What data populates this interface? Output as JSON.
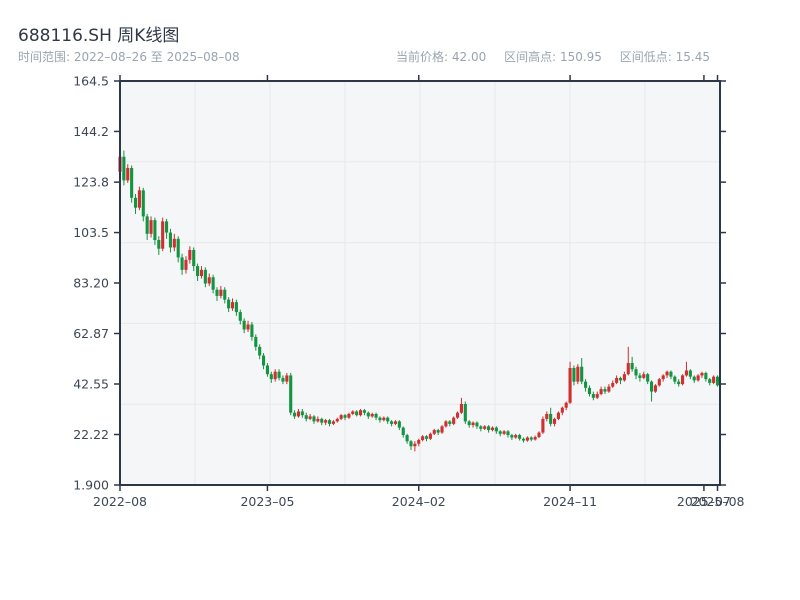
{
  "header": {
    "title": "688116.SH 周K线图",
    "range_label": "时间范围:",
    "range_value": "2022–08–26 至 2025–08–08",
    "stats": [
      {
        "label": "当前价格:",
        "value": "42.00"
      },
      {
        "label": "区间高点:",
        "value": "150.95"
      },
      {
        "label": "区间低点:",
        "value": "15.45"
      }
    ]
  },
  "chart_data": {
    "type": "candlestick",
    "symbol": "688116.SH",
    "period": "weekly",
    "title": "688116.SH 周K线图",
    "date_start": "2022-08-26",
    "date_end": "2025-08-08",
    "current_price": 42.0,
    "range_high": 150.95,
    "range_low": 15.45,
    "ylim": [
      1.9,
      164.5
    ],
    "grid": true,
    "colors": {
      "up": "#d02f2f",
      "down": "#129440",
      "frame": "#2c3848",
      "gridline": "#e6e8eb",
      "plot_bg": "#f5f6f8",
      "tick_text": "#3d4855"
    },
    "y_ticks": [
      {
        "label": "164.5",
        "value": 164.5
      },
      {
        "label": "144.2",
        "value": 144.2
      },
      {
        "label": "123.8",
        "value": 123.8
      },
      {
        "label": "103.5",
        "value": 103.5
      },
      {
        "label": "83.20",
        "value": 83.2
      },
      {
        "label": "62.87",
        "value": 62.87
      },
      {
        "label": "42.55",
        "value": 42.55
      },
      {
        "label": "22.22",
        "value": 22.22
      },
      {
        "label": "1.900",
        "value": 1.9
      }
    ],
    "x_ticks": [
      {
        "label": "2022–08",
        "week": 0
      },
      {
        "label": "2023–05",
        "week": 38
      },
      {
        "label": "2024–02",
        "week": 77
      },
      {
        "label": "2024–11",
        "week": 116
      },
      {
        "label": "2025–07",
        "week": 150.5
      },
      {
        "label": "2025–08",
        "week": 154
      }
    ],
    "candles": [
      [
        128,
        150.95,
        125,
        134
      ],
      [
        134,
        136.5,
        122.5,
        124.5
      ],
      [
        124.5,
        131,
        123.5,
        129.5
      ],
      [
        129.5,
        130.5,
        115.5,
        117.5
      ],
      [
        117.5,
        119,
        111,
        113.5
      ],
      [
        113.5,
        122,
        112.5,
        120.5
      ],
      [
        120.5,
        121.5,
        108,
        110
      ],
      [
        110,
        111,
        100.5,
        103
      ],
      [
        103,
        110,
        101.5,
        108.5
      ],
      [
        108.5,
        109.5,
        98.5,
        100.5
      ],
      [
        100.5,
        102,
        94.5,
        97
      ],
      [
        97,
        109.5,
        96,
        108
      ],
      [
        108,
        109,
        101,
        103.5
      ],
      [
        103.5,
        105,
        95.5,
        97.5
      ],
      [
        97.5,
        103,
        96,
        101
      ],
      [
        101,
        102,
        91.5,
        93.5
      ],
      [
        93.5,
        95,
        86.5,
        88.5
      ],
      [
        88.5,
        94,
        87,
        92.5
      ],
      [
        92.5,
        98,
        91,
        96.5
      ],
      [
        96.5,
        97.5,
        88,
        90
      ],
      [
        90,
        91,
        84,
        86
      ],
      [
        86,
        90,
        85,
        88.5
      ],
      [
        88.5,
        89.5,
        81.5,
        83
      ],
      [
        83,
        87,
        82,
        85.5
      ],
      [
        85.5,
        86.5,
        79,
        80.5
      ],
      [
        80.5,
        81.5,
        76,
        78
      ],
      [
        78,
        82,
        77,
        80.5
      ],
      [
        80.5,
        81.5,
        75,
        76.5
      ],
      [
        76.5,
        77.5,
        71.5,
        73
      ],
      [
        73,
        77,
        72,
        75.5
      ],
      [
        75.5,
        76.5,
        70,
        71.5
      ],
      [
        71.5,
        72.5,
        66.5,
        68
      ],
      [
        68,
        69,
        63,
        64.5
      ],
      [
        64.5,
        68,
        63.5,
        66.5
      ],
      [
        66.5,
        67.5,
        60,
        61.5
      ],
      [
        61.5,
        62.5,
        56,
        57.5
      ],
      [
        57.5,
        58.5,
        52.5,
        54
      ],
      [
        54,
        55,
        48.5,
        50
      ],
      [
        50,
        51,
        45.5,
        46.5
      ],
      [
        46.5,
        47.5,
        43,
        44.5
      ],
      [
        44.5,
        48.5,
        43.5,
        47.5
      ],
      [
        47.5,
        48.5,
        44,
        45
      ],
      [
        45,
        46,
        42.5,
        43.5
      ],
      [
        43.5,
        47,
        42.5,
        46
      ],
      [
        46,
        47,
        30,
        31
      ],
      [
        31,
        32,
        28.5,
        29.5
      ],
      [
        29.5,
        32.5,
        29,
        31.5
      ],
      [
        31.5,
        32.5,
        29,
        30
      ],
      [
        30,
        31,
        27.5,
        28.5
      ],
      [
        28.5,
        30.5,
        28,
        29.5
      ],
      [
        29.5,
        30,
        26.5,
        27.5
      ],
      [
        27.5,
        29.5,
        27,
        28.5
      ],
      [
        28.5,
        29,
        26,
        27
      ],
      [
        27,
        28.5,
        26,
        28
      ],
      [
        28,
        28.5,
        25.5,
        26.5
      ],
      [
        26.5,
        28,
        26,
        27.5
      ],
      [
        27.5,
        29,
        27,
        28.5
      ],
      [
        28.5,
        30.5,
        28,
        30
      ],
      [
        30,
        30.5,
        28,
        29
      ],
      [
        29,
        31,
        28.5,
        30.5
      ],
      [
        30.5,
        32,
        30,
        31.5
      ],
      [
        31.5,
        32,
        29.5,
        30
      ],
      [
        30,
        32.5,
        29.5,
        32
      ],
      [
        32,
        32.5,
        30,
        31
      ],
      [
        31,
        31.5,
        28.5,
        29.5
      ],
      [
        29.5,
        31,
        29,
        30.5
      ],
      [
        30.5,
        31,
        28,
        29
      ],
      [
        29,
        29.5,
        27,
        28
      ],
      [
        28,
        29.5,
        27.5,
        29
      ],
      [
        29,
        29.5,
        26.5,
        27.5
      ],
      [
        27.5,
        28,
        25.5,
        26.5
      ],
      [
        26.5,
        28,
        26,
        27.5
      ],
      [
        27.5,
        28,
        24,
        25
      ],
      [
        25,
        25.5,
        21,
        22
      ],
      [
        22,
        22.5,
        18.5,
        19.5
      ],
      [
        19.5,
        20,
        16,
        17.5
      ],
      [
        17.5,
        19.5,
        15.45,
        18.5
      ],
      [
        18.5,
        20.5,
        17.5,
        20
      ],
      [
        20,
        22,
        19.5,
        21.5
      ],
      [
        21.5,
        22,
        19.5,
        20.5
      ],
      [
        20.5,
        23,
        20,
        22.5
      ],
      [
        22.5,
        24.5,
        22,
        24
      ],
      [
        24,
        24.5,
        22,
        23
      ],
      [
        23,
        26,
        22.5,
        25.5
      ],
      [
        25.5,
        28,
        25,
        27.5
      ],
      [
        27.5,
        28,
        25.5,
        26.5
      ],
      [
        26.5,
        29.5,
        26,
        29
      ],
      [
        29,
        31.5,
        28.5,
        31
      ],
      [
        31,
        37,
        30.5,
        34.5
      ],
      [
        34.5,
        35.5,
        26.5,
        27.5
      ],
      [
        27.5,
        28,
        25,
        26
      ],
      [
        26,
        27.5,
        25,
        27
      ],
      [
        27,
        27.5,
        24.5,
        25.5
      ],
      [
        25.5,
        26,
        23.5,
        24.5
      ],
      [
        24.5,
        26,
        24,
        25.5
      ],
      [
        25.5,
        26,
        23,
        24
      ],
      [
        24,
        25.5,
        23.5,
        25
      ],
      [
        25,
        25.5,
        22.5,
        23.5
      ],
      [
        23.5,
        24,
        21.5,
        22.5
      ],
      [
        22.5,
        24,
        22,
        23.5
      ],
      [
        23.5,
        24,
        21,
        22
      ],
      [
        22,
        22.5,
        20,
        21
      ],
      [
        21,
        22.5,
        20.5,
        22
      ],
      [
        22,
        22.5,
        19.8,
        20.5
      ],
      [
        20.5,
        21,
        19,
        19.8
      ],
      [
        19.8,
        21.5,
        19.3,
        21
      ],
      [
        21,
        21.5,
        19.5,
        20.2
      ],
      [
        20.2,
        21.8,
        19.8,
        21.2
      ],
      [
        21.2,
        23.5,
        20.8,
        23
      ],
      [
        23,
        29.5,
        22.5,
        28.5
      ],
      [
        28.5,
        31.5,
        27.5,
        30.5
      ],
      [
        30.5,
        33,
        25.5,
        26.5
      ],
      [
        26.5,
        29,
        25.5,
        28.5
      ],
      [
        28.5,
        31.5,
        28,
        31
      ],
      [
        31,
        33.5,
        30,
        33
      ],
      [
        33,
        35.5,
        32,
        35
      ],
      [
        35,
        51.5,
        34.5,
        49
      ],
      [
        49,
        50,
        42,
        43.5
      ],
      [
        43.5,
        50.5,
        42.5,
        49.5
      ],
      [
        49.5,
        53,
        42.5,
        43.5
      ],
      [
        43.5,
        44.5,
        39.5,
        41
      ],
      [
        41,
        42,
        37.5,
        38.5
      ],
      [
        38.5,
        39.5,
        36,
        37
      ],
      [
        37,
        39.5,
        36.5,
        38.5
      ],
      [
        38.5,
        41.5,
        38,
        40.5
      ],
      [
        40.5,
        41.5,
        38.5,
        39.5
      ],
      [
        39.5,
        42.5,
        39,
        41.5
      ],
      [
        41.5,
        44,
        41,
        43
      ],
      [
        43,
        46,
        42.5,
        45
      ],
      [
        45,
        45.5,
        42.5,
        44
      ],
      [
        44,
        47.5,
        43.5,
        46.5
      ],
      [
        46.5,
        57.5,
        46,
        51
      ],
      [
        51,
        53.5,
        47.5,
        48.5
      ],
      [
        48.5,
        49.5,
        44.5,
        46
      ],
      [
        46,
        47,
        43.5,
        45
      ],
      [
        45,
        47.5,
        44.5,
        46.5
      ],
      [
        46.5,
        47,
        42.5,
        43.5
      ],
      [
        43.5,
        44,
        35.5,
        39.5
      ],
      [
        39.5,
        42.5,
        39,
        42
      ],
      [
        42,
        45,
        41.5,
        44.5
      ],
      [
        44.5,
        46.5,
        43.5,
        46
      ],
      [
        46,
        48,
        45,
        47.5
      ],
      [
        47.5,
        48,
        44.5,
        45.5
      ],
      [
        45.5,
        46,
        42.5,
        43.5
      ],
      [
        43.5,
        44.5,
        41.5,
        42.5
      ],
      [
        42.5,
        46.5,
        42,
        46
      ],
      [
        46,
        51.5,
        45.5,
        48
      ],
      [
        48,
        48.5,
        44.5,
        45.5
      ],
      [
        45.5,
        46,
        43,
        44
      ],
      [
        44,
        46.5,
        43.5,
        46
      ],
      [
        46,
        47.5,
        45,
        47
      ],
      [
        47,
        47.5,
        43.5,
        44.5
      ],
      [
        44.5,
        45,
        42,
        43
      ],
      [
        43,
        46,
        42.5,
        45.5
      ],
      [
        45.5,
        46,
        41.5,
        42
      ]
    ]
  }
}
